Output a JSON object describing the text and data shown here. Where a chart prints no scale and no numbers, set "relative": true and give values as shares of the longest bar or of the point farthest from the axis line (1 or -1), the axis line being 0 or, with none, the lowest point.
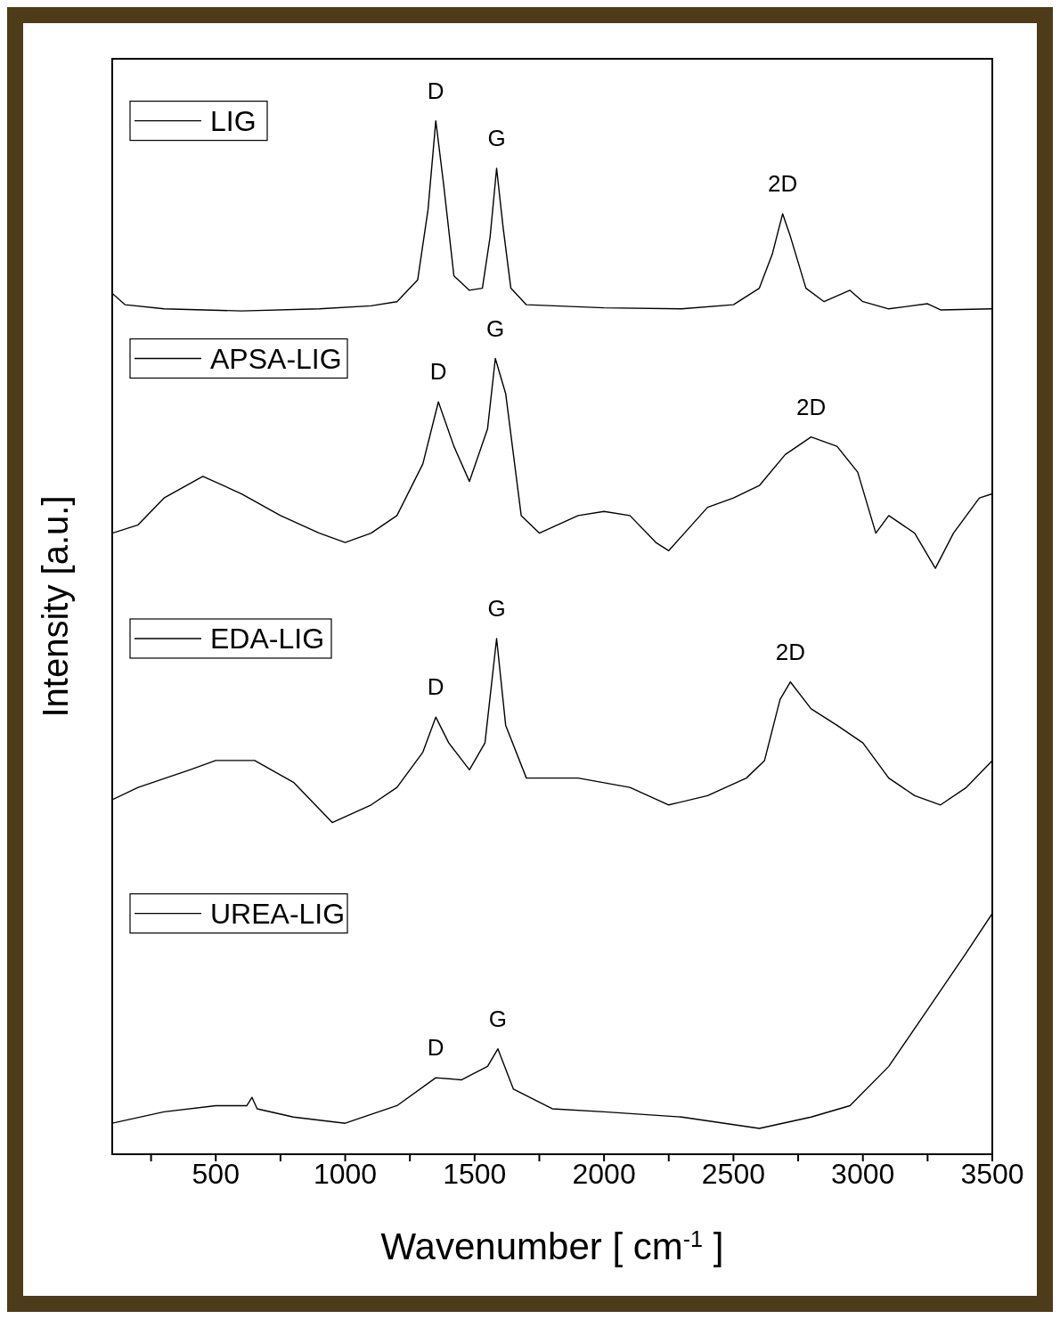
{
  "chart_data": {
    "type": "line",
    "relative": true,
    "xlabel": "Wavenumber [ cm$^{-1}$ ]",
    "ylabel": "Intensity [a.u.]",
    "xlim": [
      100,
      3500
    ],
    "xticks": [
      {
        "value": 250,
        "label": null
      },
      500,
      {
        "value": 750,
        "label": null
      },
      1000,
      {
        "value": 1250,
        "label": null
      },
      1500,
      {
        "value": 1750,
        "label": null
      },
      2000,
      {
        "value": 2250,
        "label": null
      },
      2500,
      {
        "value": 2750,
        "label": null
      },
      3000,
      {
        "value": 3250,
        "label": null
      },
      3500
    ],
    "grid": false,
    "legend": "top left",
    "marker": "none",
    "line_style": "solid",
    "series": [
      {
        "name": "LIG",
        "color": "#000000",
        "x": [
          100,
          150,
          300,
          600,
          900,
          1100,
          1200,
          1280,
          1320,
          1350,
          1380,
          1420,
          1480,
          1530,
          1560,
          1585,
          1610,
          1640,
          1700,
          2000,
          2300,
          2500,
          2600,
          2650,
          2690,
          2720,
          2780,
          2850,
          2950,
          3000,
          3100,
          3250,
          3300,
          3500
        ],
        "values": [
          0.833,
          0.822,
          0.818,
          0.816,
          0.818,
          0.821,
          0.825,
          0.846,
          0.914,
          1.0,
          0.939,
          0.85,
          0.836,
          0.838,
          0.888,
          0.954,
          0.897,
          0.838,
          0.822,
          0.819,
          0.818,
          0.822,
          0.838,
          0.871,
          0.91,
          0.888,
          0.838,
          0.825,
          0.836,
          0.825,
          0.818,
          0.823,
          0.817,
          0.818
        ]
      },
      {
        "name": "APSA-LIG",
        "color": "#000000",
        "x": [
          100,
          200,
          300,
          450,
          600,
          750,
          900,
          1000,
          1100,
          1200,
          1300,
          1360,
          1420,
          1480,
          1550,
          1580,
          1620,
          1680,
          1750,
          1900,
          2000,
          2100,
          2200,
          2250,
          2400,
          2500,
          2600,
          2700,
          2800,
          2900,
          2980,
          3050,
          3100,
          3200,
          3280,
          3350,
          3450,
          3500
        ],
        "values": [
          0.601,
          0.609,
          0.635,
          0.656,
          0.639,
          0.618,
          0.601,
          0.592,
          0.601,
          0.618,
          0.668,
          0.728,
          0.685,
          0.651,
          0.702,
          0.77,
          0.736,
          0.618,
          0.601,
          0.618,
          0.622,
          0.618,
          0.592,
          0.584,
          0.626,
          0.635,
          0.647,
          0.677,
          0.694,
          0.685,
          0.66,
          0.601,
          0.618,
          0.601,
          0.567,
          0.601,
          0.635,
          0.639
        ]
      },
      {
        "name": "EDA-LIG",
        "color": "#000000",
        "x": [
          100,
          200,
          400,
          500,
          650,
          800,
          950,
          1100,
          1200,
          1300,
          1350,
          1400,
          1480,
          1540,
          1585,
          1620,
          1700,
          1900,
          2100,
          2250,
          2400,
          2550,
          2620,
          2680,
          2720,
          2800,
          2900,
          3000,
          3100,
          3200,
          3300,
          3400,
          3500
        ],
        "values": [
          0.343,
          0.355,
          0.372,
          0.381,
          0.381,
          0.36,
          0.321,
          0.338,
          0.355,
          0.389,
          0.423,
          0.398,
          0.372,
          0.398,
          0.499,
          0.415,
          0.364,
          0.364,
          0.355,
          0.338,
          0.347,
          0.364,
          0.381,
          0.44,
          0.457,
          0.431,
          0.415,
          0.398,
          0.364,
          0.347,
          0.338,
          0.355,
          0.381
        ]
      },
      {
        "name": "UREA-LIG",
        "color": "#000000",
        "x": [
          100,
          300,
          500,
          620,
          640,
          660,
          800,
          1000,
          1200,
          1350,
          1450,
          1550,
          1590,
          1650,
          1800,
          2000,
          2300,
          2600,
          2800,
          2950,
          3100,
          3250,
          3400,
          3500
        ],
        "values": [
          0.03,
          0.041,
          0.047,
          0.047,
          0.055,
          0.044,
          0.036,
          0.03,
          0.047,
          0.074,
          0.072,
          0.085,
          0.102,
          0.063,
          0.044,
          0.041,
          0.036,
          0.025,
          0.036,
          0.047,
          0.085,
          0.14,
          0.195,
          0.233
        ]
      }
    ],
    "annotations": [
      {
        "text": "D",
        "x": 1350,
        "y": 1.0
      },
      {
        "text": "G",
        "x": 1585,
        "y": 0.954
      },
      {
        "text": "2D",
        "x": 2690,
        "y": 0.91
      },
      {
        "text": "D",
        "x": 1360,
        "y": 0.728
      },
      {
        "text": "G",
        "x": 1580,
        "y": 0.77
      },
      {
        "text": "2D",
        "x": 2800,
        "y": 0.694
      },
      {
        "text": "D",
        "x": 1350,
        "y": 0.423
      },
      {
        "text": "G",
        "x": 1585,
        "y": 0.499
      },
      {
        "text": "2D",
        "x": 2720,
        "y": 0.457
      },
      {
        "text": "D",
        "x": 1350,
        "y": 0.074
      },
      {
        "text": "G",
        "x": 1590,
        "y": 0.102
      }
    ]
  }
}
